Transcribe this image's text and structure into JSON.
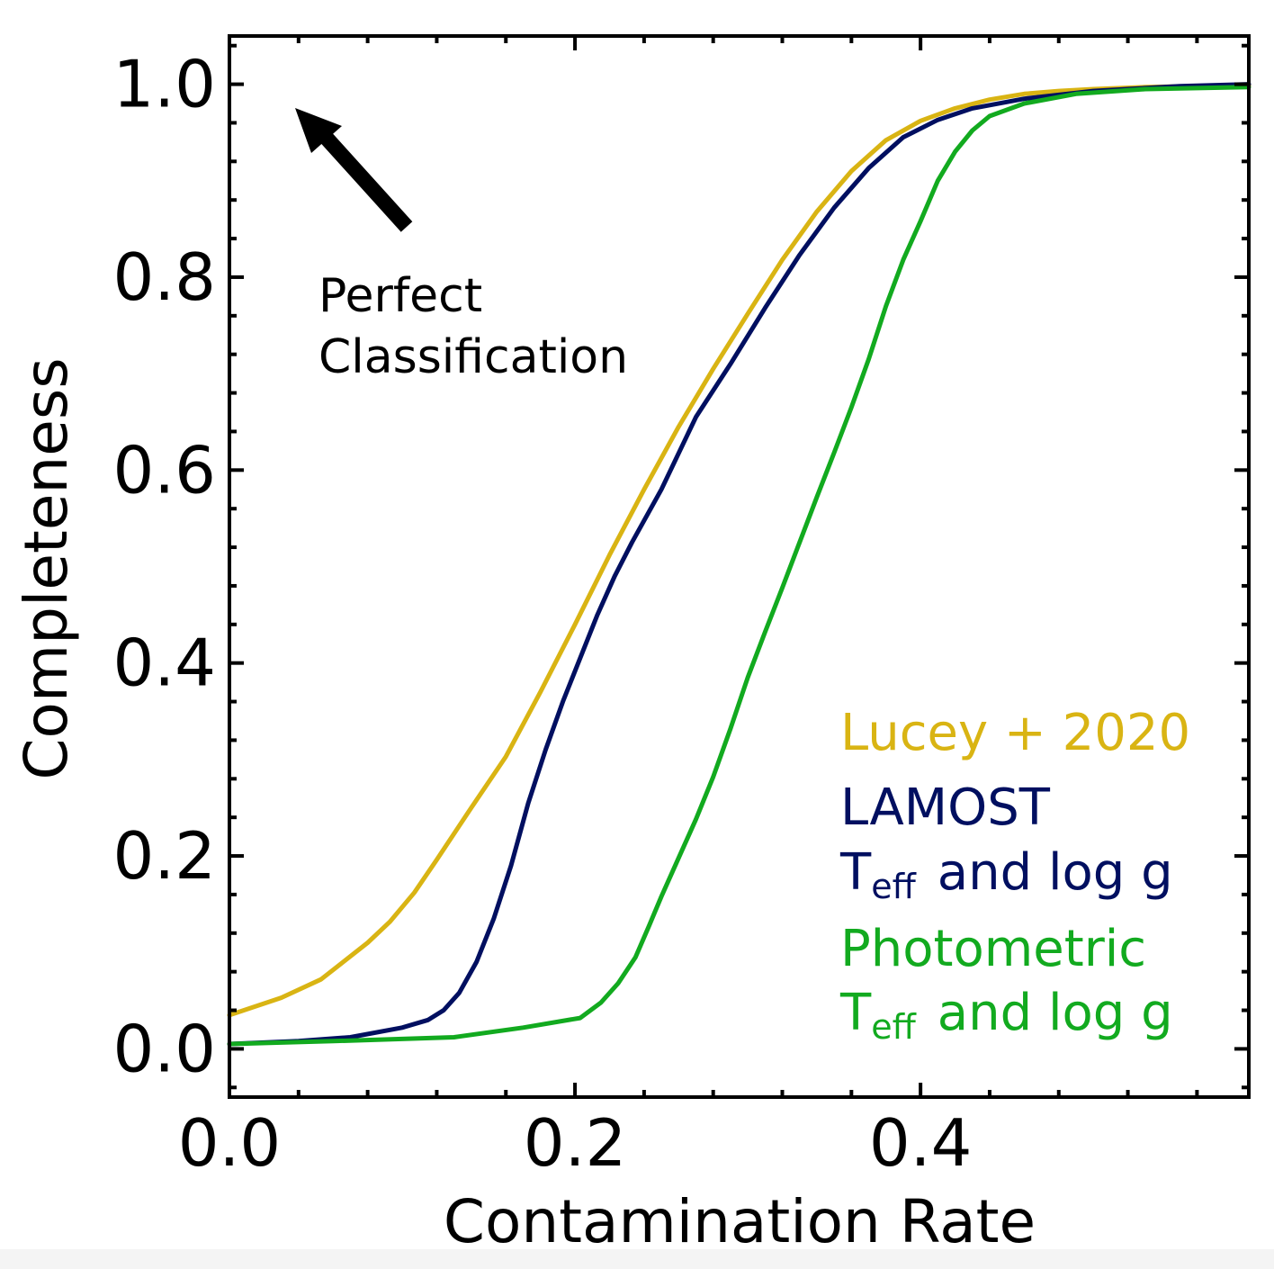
{
  "chart_data": {
    "type": "line",
    "xlabel": "Contamination Rate",
    "ylabel": "Completeness",
    "xlim": [
      0.0,
      0.59
    ],
    "ylim": [
      -0.05,
      1.05
    ],
    "x_ticks": [
      {
        "value": 0.0,
        "label": "0.0"
      },
      {
        "value": 0.2,
        "label": "0.2"
      },
      {
        "value": 0.4,
        "label": "0.4"
      }
    ],
    "y_ticks": [
      {
        "value": 0.0,
        "label": "0.0"
      },
      {
        "value": 0.2,
        "label": "0.2"
      },
      {
        "value": 0.4,
        "label": "0.4"
      },
      {
        "value": 0.6,
        "label": "0.6"
      },
      {
        "value": 0.8,
        "label": "0.8"
      },
      {
        "value": 1.0,
        "label": "1.0"
      }
    ],
    "grid": false,
    "legend_position": "bottom-right",
    "series": [
      {
        "name": "Lucey + 2020",
        "color": "#d9b413",
        "x": [
          0.0,
          0.03,
          0.053,
          0.08,
          0.093,
          0.107,
          0.12,
          0.14,
          0.16,
          0.18,
          0.2,
          0.22,
          0.24,
          0.26,
          0.28,
          0.3,
          0.32,
          0.34,
          0.36,
          0.38,
          0.4,
          0.42,
          0.44,
          0.46,
          0.48,
          0.5,
          0.53,
          0.56,
          0.59
        ],
        "y": [
          0.035,
          0.053,
          0.072,
          0.11,
          0.132,
          0.162,
          0.196,
          0.25,
          0.303,
          0.37,
          0.44,
          0.512,
          0.58,
          0.645,
          0.705,
          0.762,
          0.818,
          0.868,
          0.91,
          0.942,
          0.962,
          0.975,
          0.984,
          0.99,
          0.993,
          0.995,
          0.997,
          0.998,
          0.999
        ]
      },
      {
        "name": "LAMOST",
        "label_line2": "and log g",
        "color": "#000f60",
        "x": [
          0.0,
          0.04,
          0.07,
          0.1,
          0.115,
          0.124,
          0.133,
          0.143,
          0.153,
          0.163,
          0.173,
          0.183,
          0.193,
          0.203,
          0.213,
          0.223,
          0.233,
          0.25,
          0.27,
          0.29,
          0.31,
          0.33,
          0.35,
          0.37,
          0.39,
          0.41,
          0.43,
          0.46,
          0.5,
          0.55,
          0.59
        ],
        "y": [
          0.005,
          0.008,
          0.012,
          0.022,
          0.03,
          0.04,
          0.058,
          0.09,
          0.135,
          0.19,
          0.255,
          0.31,
          0.36,
          0.405,
          0.45,
          0.49,
          0.525,
          0.58,
          0.655,
          0.71,
          0.768,
          0.823,
          0.872,
          0.913,
          0.945,
          0.963,
          0.975,
          0.985,
          0.993,
          0.998,
          1.0
        ]
      },
      {
        "name": "Photometric",
        "label_line2": "and log g",
        "color": "#12aa1f",
        "x": [
          0.0,
          0.06,
          0.13,
          0.17,
          0.203,
          0.215,
          0.225,
          0.235,
          0.243,
          0.25,
          0.26,
          0.27,
          0.28,
          0.29,
          0.3,
          0.31,
          0.32,
          0.33,
          0.34,
          0.35,
          0.36,
          0.37,
          0.38,
          0.39,
          0.4,
          0.41,
          0.42,
          0.43,
          0.44,
          0.46,
          0.49,
          0.53,
          0.59
        ],
        "y": [
          0.005,
          0.008,
          0.012,
          0.022,
          0.032,
          0.048,
          0.068,
          0.095,
          0.128,
          0.158,
          0.198,
          0.238,
          0.282,
          0.332,
          0.385,
          0.432,
          0.478,
          0.525,
          0.572,
          0.618,
          0.665,
          0.715,
          0.77,
          0.818,
          0.858,
          0.9,
          0.93,
          0.952,
          0.967,
          0.98,
          0.99,
          0.995,
          0.997
        ]
      }
    ],
    "annotations": [
      {
        "text_line1": "Perfect",
        "text_line2": "Classification",
        "arrow": "points toward top-left (perfect classification corner)"
      }
    ],
    "legend": {
      "lucey": "Lucey + 2020",
      "lamost_line1": "LAMOST",
      "lamost_T": "T",
      "lamost_sub": "eff",
      "lamost_rest": "and log g",
      "phot_line1": "Photometric",
      "phot_T": "T",
      "phot_sub": "eff",
      "phot_rest": "and log g"
    }
  }
}
